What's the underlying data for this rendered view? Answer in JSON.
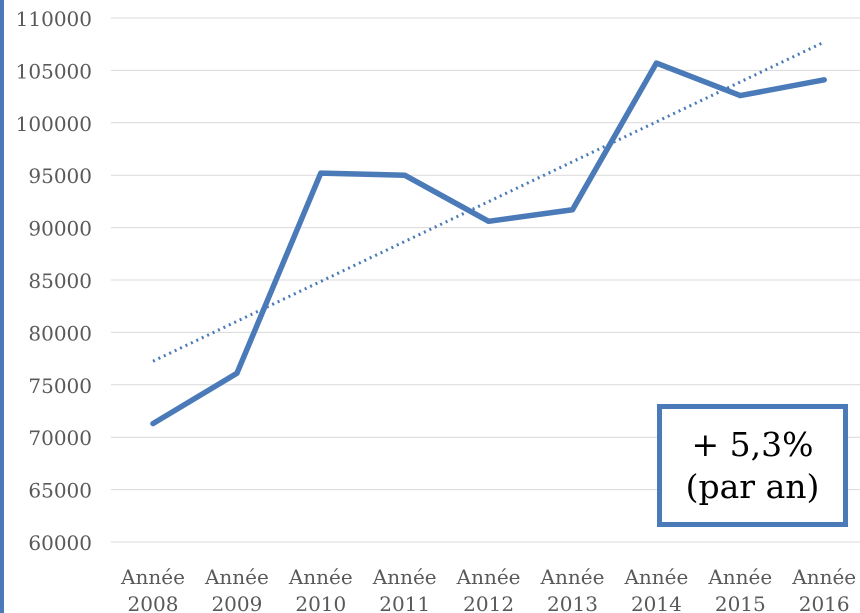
{
  "chart_data": {
    "type": "line",
    "categories": [
      [
        "Année",
        "2008"
      ],
      [
        "Année",
        "2009"
      ],
      [
        "Année",
        "2010"
      ],
      [
        "Année",
        "2011"
      ],
      [
        "Année",
        "2012"
      ],
      [
        "Année",
        "2013"
      ],
      [
        "Année",
        "2014"
      ],
      [
        "Année",
        "2015"
      ],
      [
        "Année",
        "2016"
      ]
    ],
    "series": [
      {
        "values": [
          71300,
          76100,
          95200,
          95000,
          90600,
          91700,
          105700,
          102600,
          104100
        ],
        "color": "#4a7ab8"
      }
    ],
    "trendline": {
      "type": "linear",
      "style": "dotted",
      "color": "#4a7ab8"
    },
    "ylim": [
      60000,
      110000
    ],
    "yticks": [
      60000,
      65000,
      70000,
      75000,
      80000,
      85000,
      90000,
      95000,
      100000,
      105000,
      110000
    ],
    "grid": true,
    "legend": "none",
    "annotation": {
      "line1": "+ 5,3%",
      "line2": "(par an)",
      "border_color": "#4a7ab8"
    }
  }
}
